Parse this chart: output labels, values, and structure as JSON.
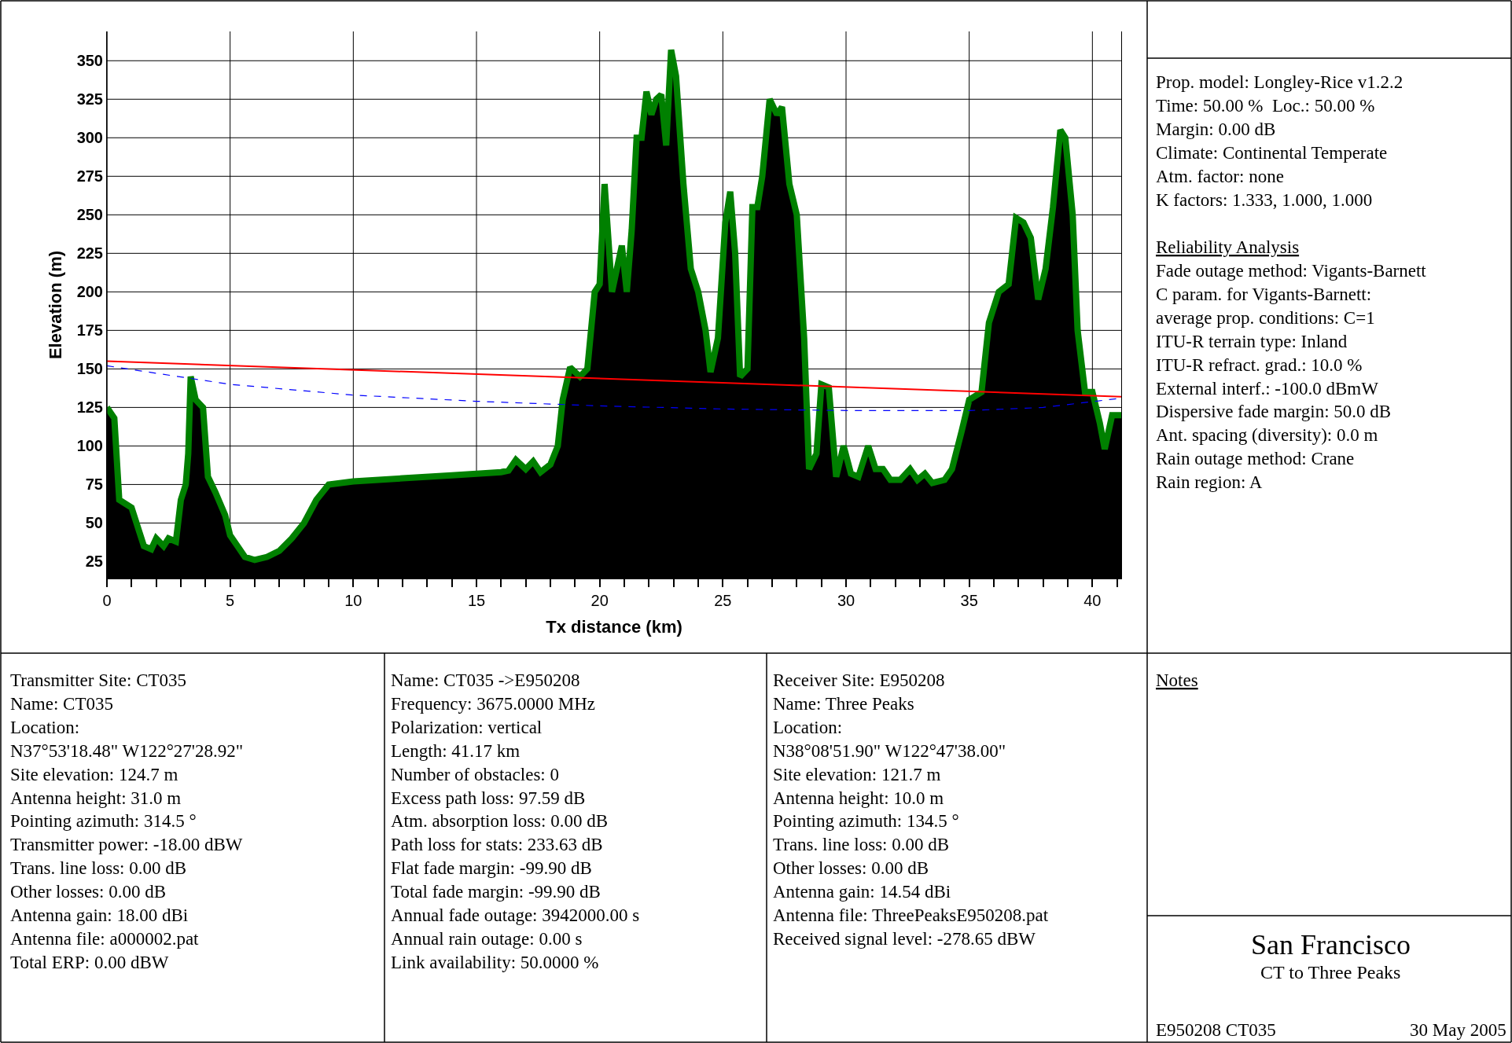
{
  "chart_data": {
    "type": "area",
    "title": "San Francisco",
    "subtitle": "CT to Three Peaks",
    "xlabel": "Tx distance (km)",
    "ylabel": "Elevation (m)",
    "xlim": [
      0,
      41.17
    ],
    "ylim": [
      14,
      369
    ],
    "xticks": [
      0,
      {
        "value": 1,
        "label": null
      },
      {
        "value": 2,
        "label": null
      },
      {
        "value": 3,
        "label": null
      },
      {
        "value": 4,
        "label": null
      },
      5,
      {
        "value": 6,
        "label": null
      },
      {
        "value": 7,
        "label": null
      },
      {
        "value": 8,
        "label": null
      },
      {
        "value": 9,
        "label": null
      },
      10,
      {
        "value": 11,
        "label": null
      },
      {
        "value": 12,
        "label": null
      },
      {
        "value": 13,
        "label": null
      },
      {
        "value": 14,
        "label": null
      },
      15,
      {
        "value": 16,
        "label": null
      },
      {
        "value": 17,
        "label": null
      },
      {
        "value": 18,
        "label": null
      },
      {
        "value": 19,
        "label": null
      },
      20,
      {
        "value": 21,
        "label": null
      },
      {
        "value": 22,
        "label": null
      },
      {
        "value": 23,
        "label": null
      },
      {
        "value": 24,
        "label": null
      },
      25,
      {
        "value": 26,
        "label": null
      },
      {
        "value": 27,
        "label": null
      },
      {
        "value": 28,
        "label": null
      },
      {
        "value": 29,
        "label": null
      },
      30,
      {
        "value": 31,
        "label": null
      },
      {
        "value": 32,
        "label": null
      },
      {
        "value": 33,
        "label": null
      },
      {
        "value": 34,
        "label": null
      },
      35,
      {
        "value": 36,
        "label": null
      },
      {
        "value": 37,
        "label": null
      },
      {
        "value": 38,
        "label": null
      },
      {
        "value": 39,
        "label": null
      },
      40,
      {
        "value": 41,
        "label": null
      }
    ],
    "yticks": [
      25,
      50,
      75,
      100,
      125,
      150,
      175,
      200,
      225,
      250,
      275,
      300,
      325,
      350
    ],
    "grid": true,
    "series": [
      {
        "color": "#008000",
        "x": [
          0,
          0.3,
          0.5,
          1.0,
          1.3,
          1.5,
          1.8,
          2.0,
          2.3,
          2.5,
          2.8,
          3.0,
          3.2,
          3.3,
          3.4,
          3.6,
          3.9,
          4.1,
          4.4,
          4.8,
          5.0,
          5.3,
          5.6,
          6.0,
          6.5,
          7.0,
          7.5,
          8.0,
          8.5,
          9.0,
          10,
          12,
          14,
          16,
          16.3,
          16.6,
          17.0,
          17.3,
          17.6,
          18.0,
          18.3,
          18.5,
          18.8,
          19.2,
          19.5,
          19.8,
          20.0,
          20.2,
          20.5,
          20.7,
          20.9,
          21.1,
          21.3,
          21.5,
          21.7,
          21.9,
          22.1,
          22.3,
          22.5,
          22.7,
          22.9,
          23.1,
          23.4,
          23.7,
          24.0,
          24.3,
          24.5,
          24.8,
          25.1,
          25.3,
          25.5,
          25.7,
          26.0,
          26.2,
          26.4,
          26.6,
          26.9,
          27.2,
          27.4,
          27.7,
          28.0,
          28.3,
          28.5,
          28.8,
          29.0,
          29.3,
          29.6,
          29.9,
          30.2,
          30.5,
          30.9,
          31.2,
          31.5,
          31.8,
          32.2,
          32.6,
          32.9,
          33.2,
          33.5,
          34.0,
          34.3,
          34.7,
          35.0,
          35.5,
          35.8,
          36.2,
          36.6,
          36.9,
          37.2,
          37.5,
          37.8,
          38.1,
          38.4,
          38.7,
          38.9,
          39.2,
          39.4,
          39.7,
          40.0,
          40.3,
          40.5,
          40.8,
          41.17
        ],
        "values": [
          125,
          118,
          65,
          60,
          45,
          35,
          33,
          40,
          35,
          40,
          38,
          65,
          75,
          95,
          145,
          130,
          125,
          80,
          70,
          55,
          42,
          35,
          28,
          26,
          28,
          32,
          40,
          50,
          65,
          75,
          77,
          79,
          81,
          83,
          84,
          91,
          85,
          90,
          83,
          88,
          100,
          130,
          151,
          145,
          150,
          200,
          205,
          270,
          200,
          215,
          230,
          200,
          240,
          300,
          300,
          330,
          315,
          325,
          328,
          295,
          357,
          340,
          270,
          215,
          200,
          175,
          148,
          170,
          245,
          265,
          225,
          145,
          150,
          255,
          255,
          275,
          325,
          315,
          320,
          270,
          250,
          170,
          85,
          95,
          140,
          138,
          80,
          100,
          82,
          80,
          100,
          85,
          85,
          78,
          78,
          85,
          78,
          82,
          76,
          78,
          85,
          110,
          130,
          135,
          180,
          200,
          205,
          248,
          245,
          235,
          195,
          215,
          255,
          305,
          300,
          250,
          175,
          135,
          135,
          115,
          98,
          120,
          120
        ]
      },
      {
        "type": "line",
        "color": "#ff0000",
        "line_style": "solid",
        "x": [
          0,
          41.17
        ],
        "values": [
          155,
          132
        ]
      },
      {
        "type": "line",
        "color": "#0000ff",
        "line_style": "dashed",
        "x": [
          0,
          5,
          10,
          15,
          20,
          25,
          30,
          35,
          38,
          41.17
        ],
        "values": [
          152,
          140,
          133,
          129,
          126,
          124,
          123,
          123,
          125,
          131
        ]
      }
    ],
    "annotations": [
      "Prop. model: Longley-Rice v1.2.2\nTime: 50.00 %  Loc.: 50.00 %\nMargin: 0.00 dB\nClimate: Continental Temperate\nAtm. factor: none\nK factors: 1.333, 1.000, 1.000",
      "Reliability Analysis",
      "Fade outage method: Vigants-Barnett\nC param. for Vigants-Barnett:\naverage prop. conditions: C=1\nITU-R terrain type: Inland\nITU-R refract. grad.: 10.0 %\nExternal interf.: -100.0 dBmW\nDispersive fade margin: 50.0 dB\nAnt. spacing (diversity): 0.0 m\nRain outage method: Crane\nRain region: A",
      "Transmitter Site: CT035\nName: CT035\nLocation:\nN37°53'18.48\" W122°27'28.92\"\nSite elevation: 124.7 m\nAntenna height: 31.0 m\nPointing azimuth: 314.5 °\nTransmitter power: -18.00 dBW\nTrans. line loss: 0.00 dB\nOther losses: 0.00 dB\nAntenna gain: 18.00 dBi\nAntenna file: a000002.pat\nTotal ERP: 0.00 dBW",
      "Name: CT035 ->E950208\nFrequency: 3675.0000 MHz\nPolarization: vertical\nLength: 41.17 km\nNumber of obstacles: 0\nExcess path loss: 97.59 dB\nAtm. absorption loss: 0.00 dB\nPath loss for stats: 233.63 dB\nFlat fade margin: -99.90 dB\nTotal fade margin: -99.90 dB\nAnnual fade outage: 3942000.00 s\nAnnual rain outage: 0.00 s\nLink availability: 50.0000 %",
      "Receiver Site: E950208\nName: Three Peaks\nLocation:\nN38°08'51.90\" W122°47'38.00\"\nSite elevation: 121.7 m\nAntenna height: 10.0 m\nPointing azimuth: 134.5 °\nTrans. line loss: 0.00 dB\nOther losses: 0.00 dB\nAntenna gain: 14.54 dBi\nAntenna file: ThreePeaksE950208.pat\nReceived signal level: -278.65 dBW",
      "Notes",
      "E950208 CT035",
      "30 May 2005"
    ]
  }
}
